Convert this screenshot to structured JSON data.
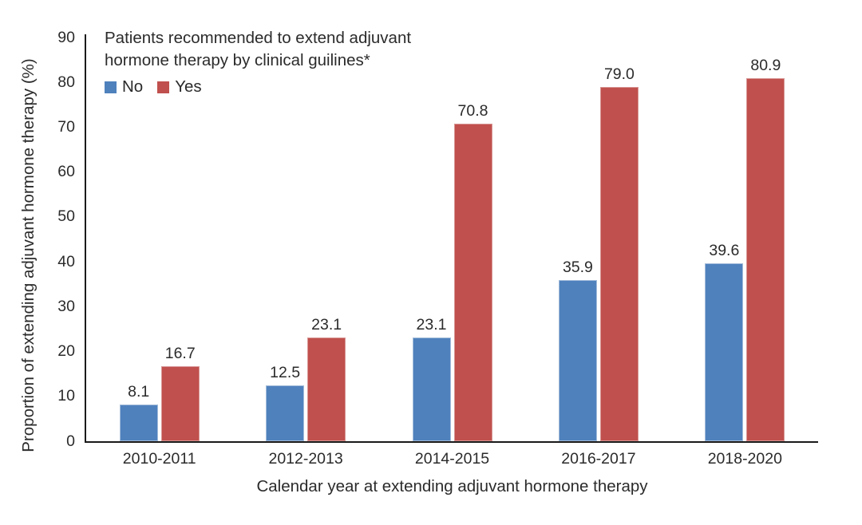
{
  "chart_data": {
    "type": "bar",
    "categories": [
      "2010-2011",
      "2012-2013",
      "2014-2015",
      "2016-2017",
      "2018-2020"
    ],
    "series": [
      {
        "name": "No",
        "color": "#4f81bd",
        "border_color": "#a3bcda",
        "values": [
          8.1,
          12.5,
          23.1,
          35.9,
          39.6
        ]
      },
      {
        "name": "Yes",
        "color": "#c0504d",
        "border_color": "#d79694",
        "values": [
          16.7,
          23.1,
          70.8,
          79.0,
          80.9
        ]
      }
    ],
    "legend_title_line1": "Patients recommended to extend adjuvant",
    "legend_title_line2": "hormone therapy by clinical guilines*",
    "xlabel": "Calendar year at extending adjuvant hormone therapy",
    "ylabel": "Proportion of extending adjuvant hormone therapy (%)",
    "ylim": [
      0,
      90
    ],
    "yticks": [
      0,
      10,
      20,
      30,
      40,
      50,
      60,
      70,
      80,
      90
    ],
    "grid": false,
    "legend_position": "top-left-inside",
    "value_label_decimals": 1,
    "axis_color": "#1a1a1a",
    "text_color": "#2b2b2b"
  }
}
